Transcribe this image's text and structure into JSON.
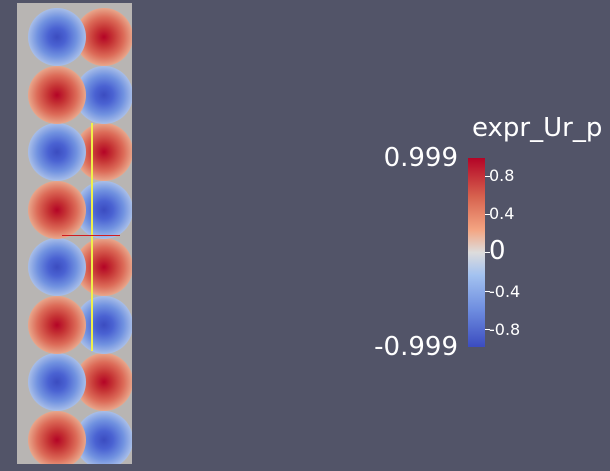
{
  "colorbar": {
    "title": "expr_Ur_p",
    "max_label": "0.999",
    "min_label": "-0.999",
    "tick_labels": [
      "0.8",
      "0.4",
      "0",
      "-0.4",
      "-0.8"
    ],
    "colormap": {
      "high": "#b40426",
      "mid": "#dddcdc",
      "low": "#3b4cc0"
    }
  },
  "plot": {
    "background": "#b8b5b3",
    "blob_pattern": [
      [
        "blue",
        "red"
      ],
      [
        "red",
        "blue"
      ],
      [
        "blue",
        "red"
      ],
      [
        "red",
        "blue"
      ],
      [
        "blue",
        "red"
      ],
      [
        "red",
        "blue"
      ],
      [
        "blue",
        "red"
      ],
      [
        "red",
        "blue"
      ]
    ],
    "probe_line_colors": {
      "vertical": "#f0f04a",
      "horizontal": "#d21c20"
    }
  }
}
